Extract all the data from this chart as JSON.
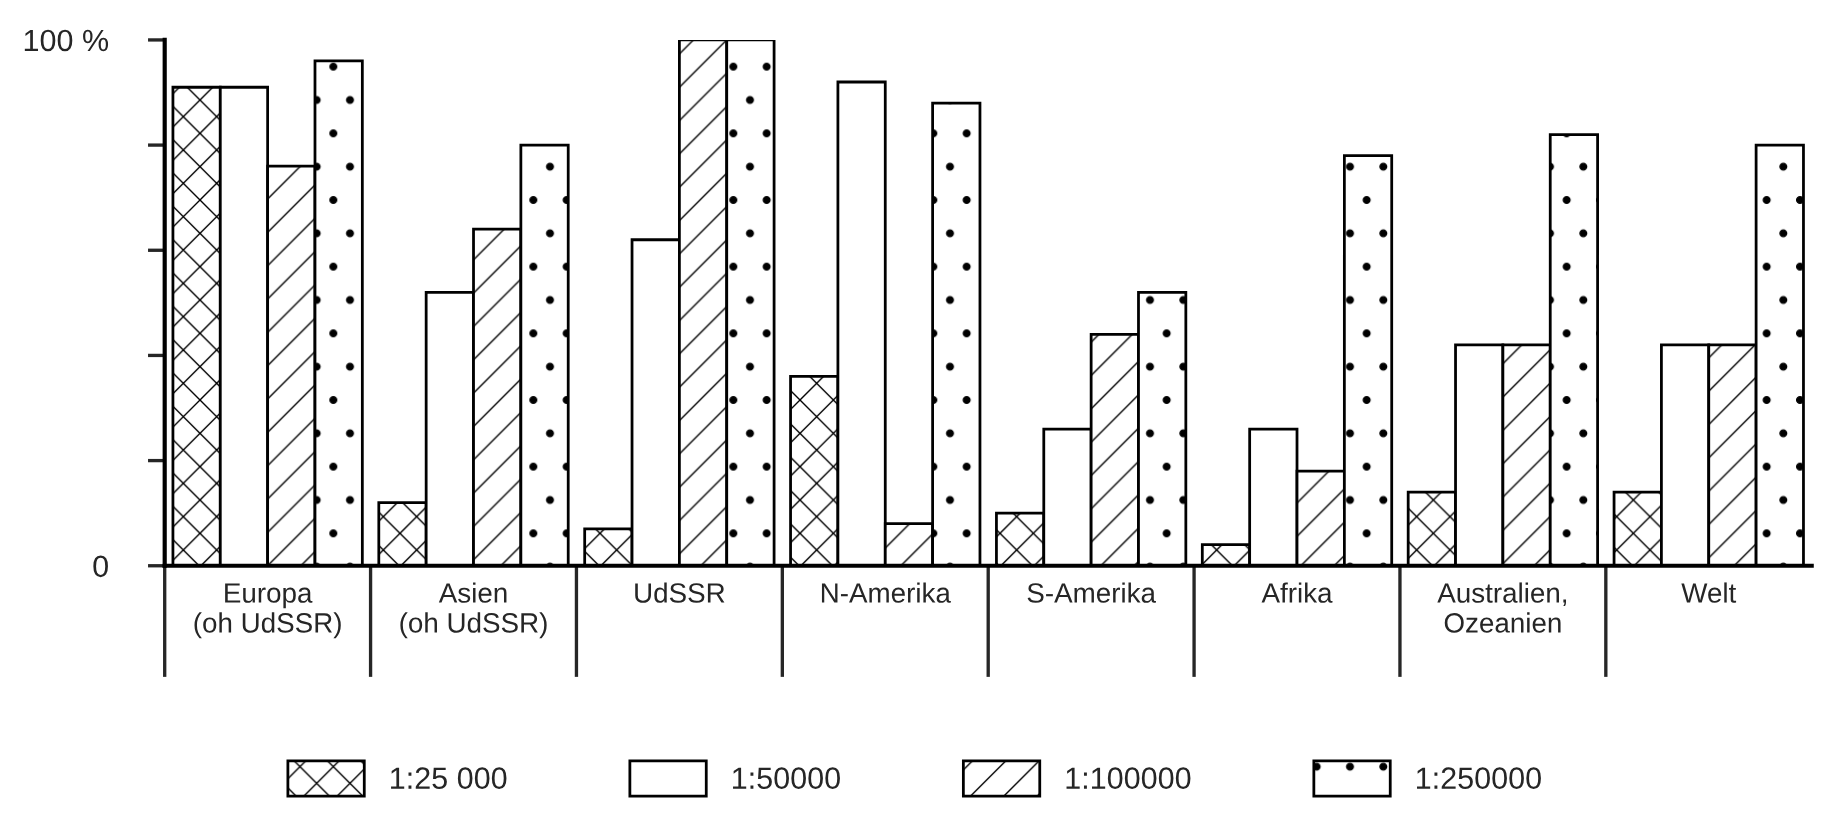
{
  "chart_data": {
    "type": "bar",
    "categories": [
      "Europa\n(oh UdSSR)",
      "Asien\n(oh UdSSR)",
      "UdSSR",
      "N-Amerika",
      "S-Amerika",
      "Afrika",
      "Australien,\nOzeanien",
      "Welt"
    ],
    "series": [
      {
        "name": "1:25 000",
        "color": "#000000",
        "values": [
          91,
          12,
          7,
          36,
          10,
          4,
          14,
          14
        ]
      },
      {
        "name": "1:50000",
        "color": "#000000",
        "values": [
          91,
          52,
          62,
          92,
          26,
          26,
          42,
          42
        ]
      },
      {
        "name": "1:100000",
        "color": "#000000",
        "values": [
          76,
          64,
          100,
          8,
          44,
          18,
          42,
          42
        ]
      },
      {
        "name": "1:250000",
        "color": "#000000",
        "values": [
          96,
          80,
          100,
          88,
          52,
          78,
          82,
          80
        ]
      }
    ],
    "ylim": [
      0,
      100
    ],
    "yticks": [
      0,
      {
        "value": 20,
        "label": null
      },
      {
        "value": 40,
        "label": null
      },
      {
        "value": 60,
        "label": null
      },
      {
        "value": 80,
        "label": null
      },
      {
        "value": 100,
        "label": "100 %"
      }
    ],
    "legend": "bottom"
  }
}
